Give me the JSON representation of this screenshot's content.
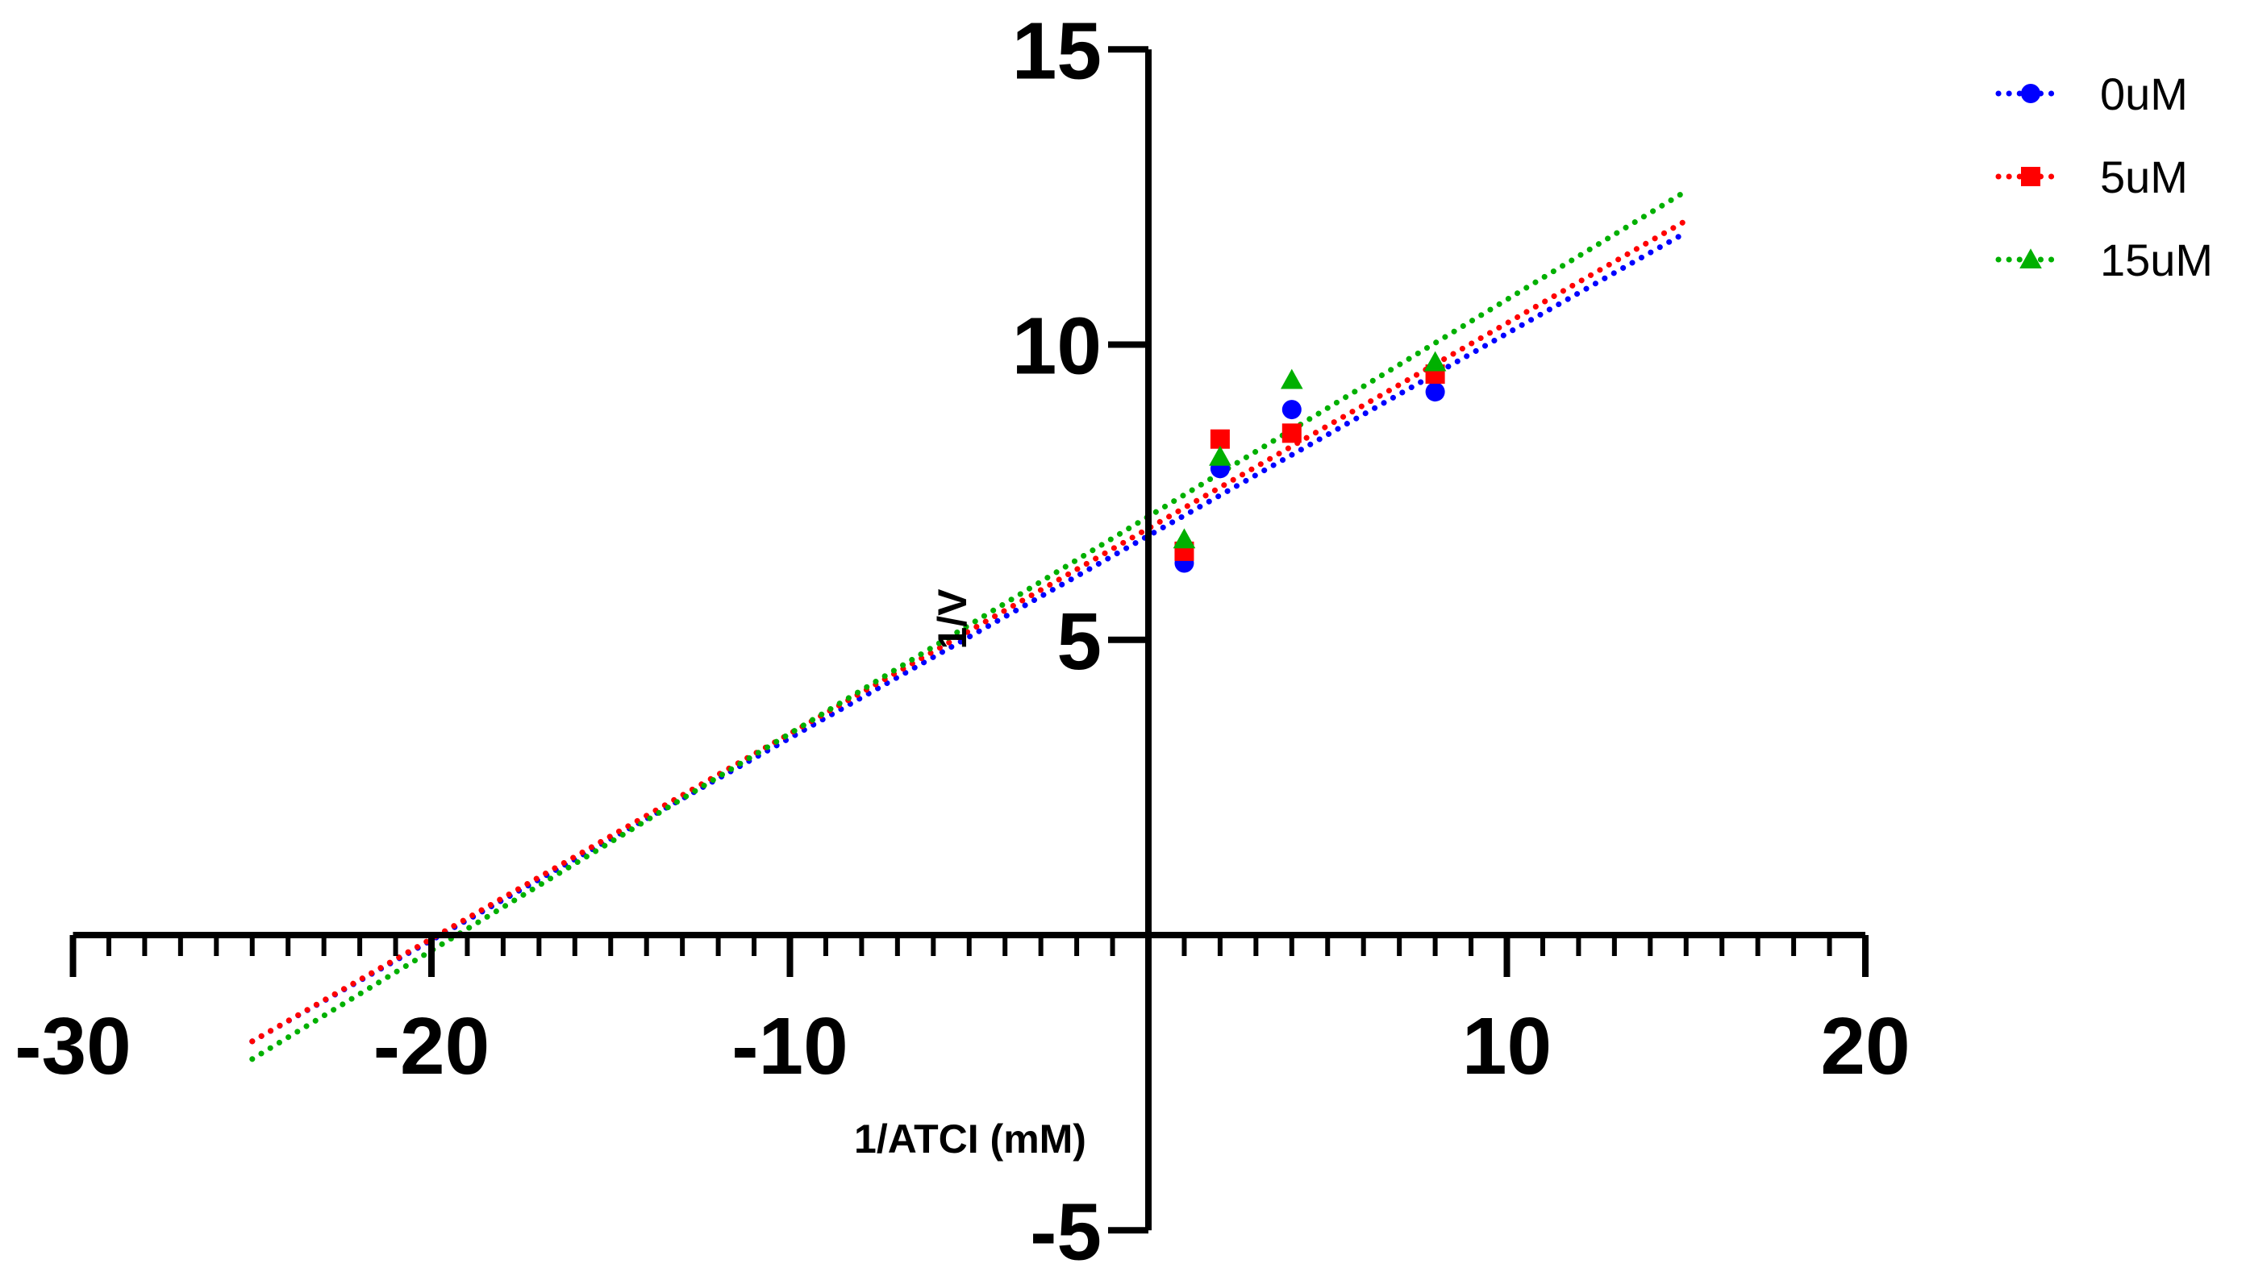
{
  "chart_data": {
    "type": "scatter",
    "xlabel": "1/ATCI (mM)",
    "ylabel": "1/V",
    "xlim": [
      -30,
      20
    ],
    "ylim": [
      -5,
      15
    ],
    "xticks": [
      -30,
      -20,
      -10,
      10,
      20
    ],
    "yticks": [
      -5,
      5,
      10,
      15
    ],
    "x_minor_step": 1,
    "grid": false,
    "legend_position": "top-right",
    "series": [
      {
        "name": "0uM",
        "color": "#0000ff",
        "marker": "circle",
        "points": [
          [
            1,
            6.3
          ],
          [
            2,
            7.9
          ],
          [
            4,
            8.9
          ],
          [
            8,
            9.2
          ]
        ],
        "fit_line": {
          "x": [
            -25,
            15
          ],
          "y": [
            -1.8,
            11.9
          ]
        }
      },
      {
        "name": "5uM",
        "color": "#ff0000",
        "marker": "square",
        "points": [
          [
            1,
            6.5
          ],
          [
            2,
            8.4
          ],
          [
            4,
            8.5
          ],
          [
            8,
            9.5
          ]
        ],
        "fit_line": {
          "x": [
            -25,
            15
          ],
          "y": [
            -1.8,
            12.1
          ]
        }
      },
      {
        "name": "15uM",
        "color": "#00b000",
        "marker": "triangle",
        "points": [
          [
            1,
            6.7
          ],
          [
            2,
            8.1
          ],
          [
            4,
            9.4
          ],
          [
            8,
            9.7
          ]
        ],
        "fit_line": {
          "x": [
            -25,
            15
          ],
          "y": [
            -2.1,
            12.6
          ]
        }
      }
    ]
  }
}
